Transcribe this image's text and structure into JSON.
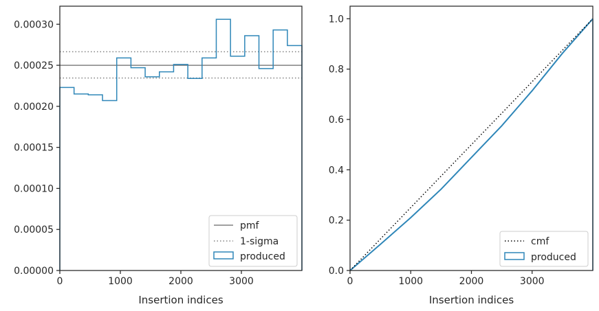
{
  "chart_data": [
    {
      "type": "line",
      "xlabel": "Insertion indices",
      "ylabel": "",
      "xlim": [
        0,
        4000
      ],
      "ylim": [
        0,
        0.000322
      ],
      "xticks": [
        0,
        1000,
        2000,
        3000
      ],
      "xtick_labels": [
        "0",
        "1000",
        "2000",
        "3000"
      ],
      "yticks": [
        0,
        5e-05,
        0.0001,
        0.00015,
        0.0002,
        0.00025,
        0.0003
      ],
      "ytick_labels": [
        "0.00000",
        "0.00005",
        "0.00010",
        "0.00015",
        "0.00020",
        "0.00025",
        "0.00030"
      ],
      "grid": false,
      "legend_position": "lower-right",
      "legend": [
        "pmf",
        "1-sigma",
        "produced"
      ],
      "pmf": 0.00025,
      "sigma_band": [
        0.0002345,
        0.0002665
      ],
      "produced_bin_edges": [
        0,
        235,
        470,
        705,
        940,
        1175,
        1410,
        1645,
        1880,
        2115,
        2350,
        2585,
        2820,
        3055,
        3290,
        3525,
        3760,
        4000
      ],
      "produced_values": [
        0.000223,
        0.000215,
        0.000214,
        0.000207,
        0.000259,
        0.000247,
        0.000236,
        0.000242,
        0.000251,
        0.000234,
        0.000259,
        0.000306,
        0.000261,
        0.000286,
        0.000246,
        0.000293,
        0.000274
      ],
      "colors": {
        "produced": "#2e86b8",
        "pmf": "#808080",
        "sigma": "#808080"
      }
    },
    {
      "type": "line",
      "xlabel": "Insertion indices",
      "ylabel": "",
      "xlim": [
        0,
        4000
      ],
      "ylim": [
        0,
        1.05
      ],
      "xticks": [
        0,
        1000,
        2000,
        3000
      ],
      "xtick_labels": [
        "0",
        "1000",
        "2000",
        "3000"
      ],
      "yticks": [
        0,
        0.2,
        0.4,
        0.6,
        0.8,
        1.0
      ],
      "ytick_labels": [
        "0.0",
        "0.2",
        "0.4",
        "0.6",
        "0.8",
        "1.0"
      ],
      "grid": false,
      "legend_position": "lower-right",
      "legend": [
        "cmf",
        "produced"
      ],
      "cmf": {
        "x": [
          0,
          4000
        ],
        "y": [
          0,
          1
        ]
      },
      "produced": {
        "x": [
          0,
          500,
          1000,
          1500,
          2000,
          2500,
          3000,
          3500,
          4000
        ],
        "y": [
          0,
          0.104,
          0.21,
          0.323,
          0.449,
          0.575,
          0.714,
          0.863,
          1.0
        ]
      },
      "colors": {
        "produced": "#2e86b8",
        "cmf": "#000000"
      }
    }
  ]
}
